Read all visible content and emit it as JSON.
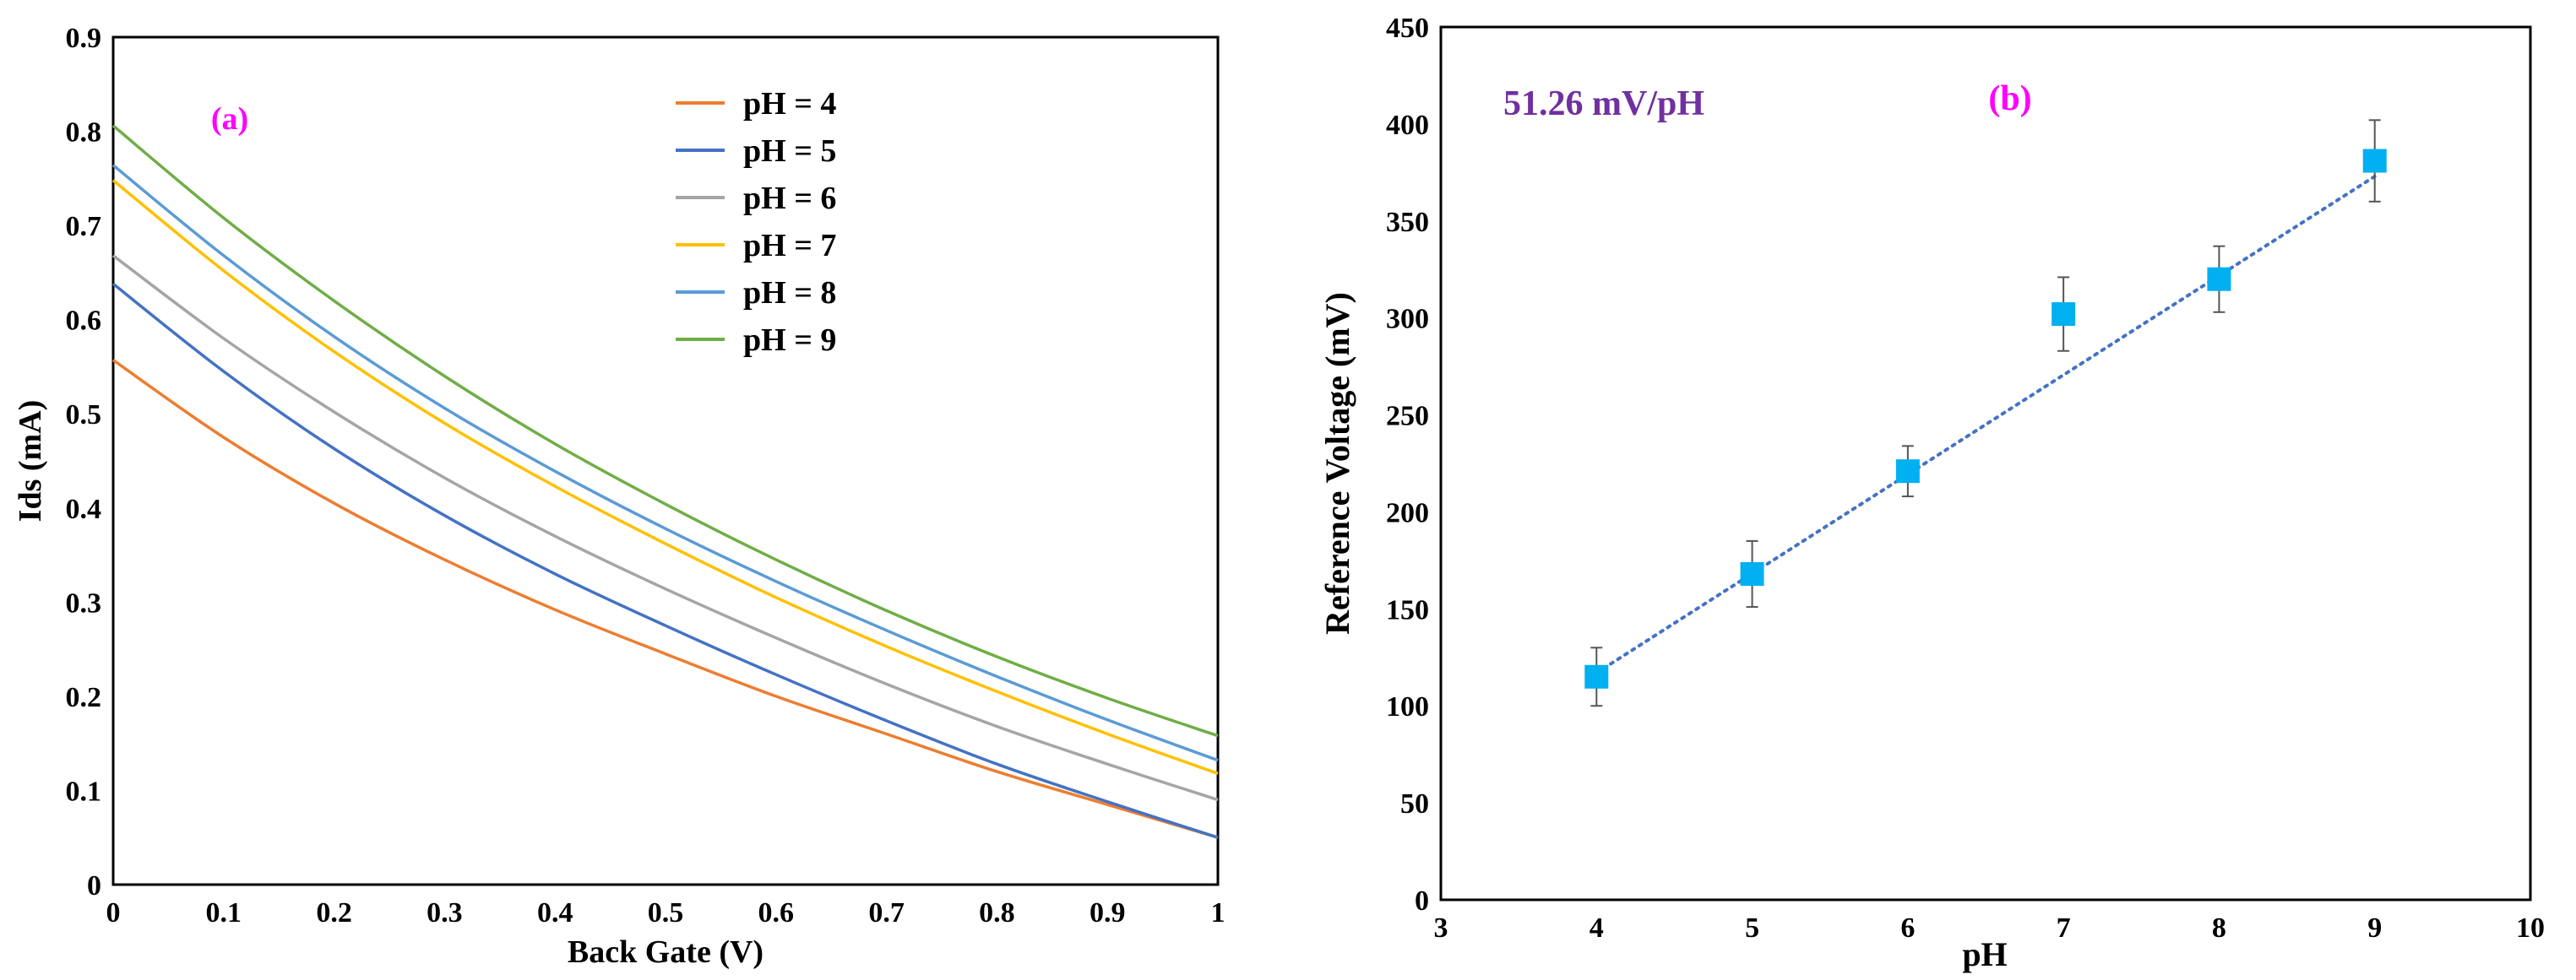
{
  "chart_data": [
    {
      "type": "line",
      "panel_label": "(a)",
      "xlabel": "Back Gate (V)",
      "ylabel": "Ids (mA)",
      "xlim": [
        0,
        1
      ],
      "ylim": [
        0,
        0.9
      ],
      "xticks": [
        "0",
        "0.1",
        "0.2",
        "0.3",
        "0.4",
        "0.5",
        "0.6",
        "0.7",
        "0.8",
        "0.9",
        "1"
      ],
      "yticks": [
        "0",
        "0.1",
        "0.2",
        "0.3",
        "0.4",
        "0.5",
        "0.6",
        "0.7",
        "0.8",
        "0.9"
      ],
      "legend_position": "top-right",
      "x": [
        0,
        0.1,
        0.2,
        0.3,
        0.4,
        0.5,
        0.6,
        0.7,
        0.8,
        0.9,
        1.0
      ],
      "series": [
        {
          "name": "pH = 4",
          "color": "#ED7D31",
          "values": [
            0.557,
            0.475,
            0.405,
            0.345,
            0.292,
            0.245,
            0.2,
            0.16,
            0.12,
            0.085,
            0.05
          ]
        },
        {
          "name": "pH = 5",
          "color": "#4472C4",
          "values": [
            0.638,
            0.545,
            0.463,
            0.392,
            0.33,
            0.275,
            0.223,
            0.174,
            0.128,
            0.088,
            0.05
          ]
        },
        {
          "name": "pH = 6",
          "color": "#A5A5A5",
          "values": [
            0.668,
            0.58,
            0.502,
            0.432,
            0.37,
            0.314,
            0.262,
            0.213,
            0.168,
            0.128,
            0.09
          ]
        },
        {
          "name": "pH = 7",
          "color": "#FFC000",
          "values": [
            0.748,
            0.652,
            0.566,
            0.49,
            0.423,
            0.362,
            0.305,
            0.253,
            0.205,
            0.16,
            0.118
          ]
        },
        {
          "name": "pH = 8",
          "color": "#5B9BD5",
          "values": [
            0.764,
            0.668,
            0.582,
            0.506,
            0.439,
            0.378,
            0.322,
            0.27,
            0.221,
            0.175,
            0.132
          ]
        },
        {
          "name": "pH = 9",
          "color": "#70AD47",
          "values": [
            0.806,
            0.708,
            0.62,
            0.54,
            0.468,
            0.404,
            0.345,
            0.291,
            0.242,
            0.198,
            0.158
          ]
        }
      ]
    },
    {
      "type": "scatter",
      "panel_label": "(b)",
      "annotation": "51.26 mV/pH",
      "xlabel": "pH",
      "ylabel": "Reference Voltage (mV)",
      "xlim": [
        3,
        10
      ],
      "ylim": [
        0,
        450
      ],
      "xticks": [
        "3",
        "4",
        "5",
        "6",
        "7",
        "8",
        "9",
        "10"
      ],
      "yticks": [
        "0",
        "50",
        "100",
        "150",
        "200",
        "250",
        "300",
        "350",
        "400",
        "450"
      ],
      "marker_color": "#00B0F0",
      "trendline_color": "#4472C4",
      "x": [
        4,
        5,
        6,
        7,
        8,
        9
      ],
      "values": [
        115,
        168,
        221,
        302,
        320,
        381
      ],
      "error": [
        15,
        17,
        13,
        19,
        17,
        21
      ],
      "trendline": {
        "slope": 51.26,
        "x": [
          4,
          9
        ],
        "y": [
          117,
          373
        ]
      }
    }
  ]
}
